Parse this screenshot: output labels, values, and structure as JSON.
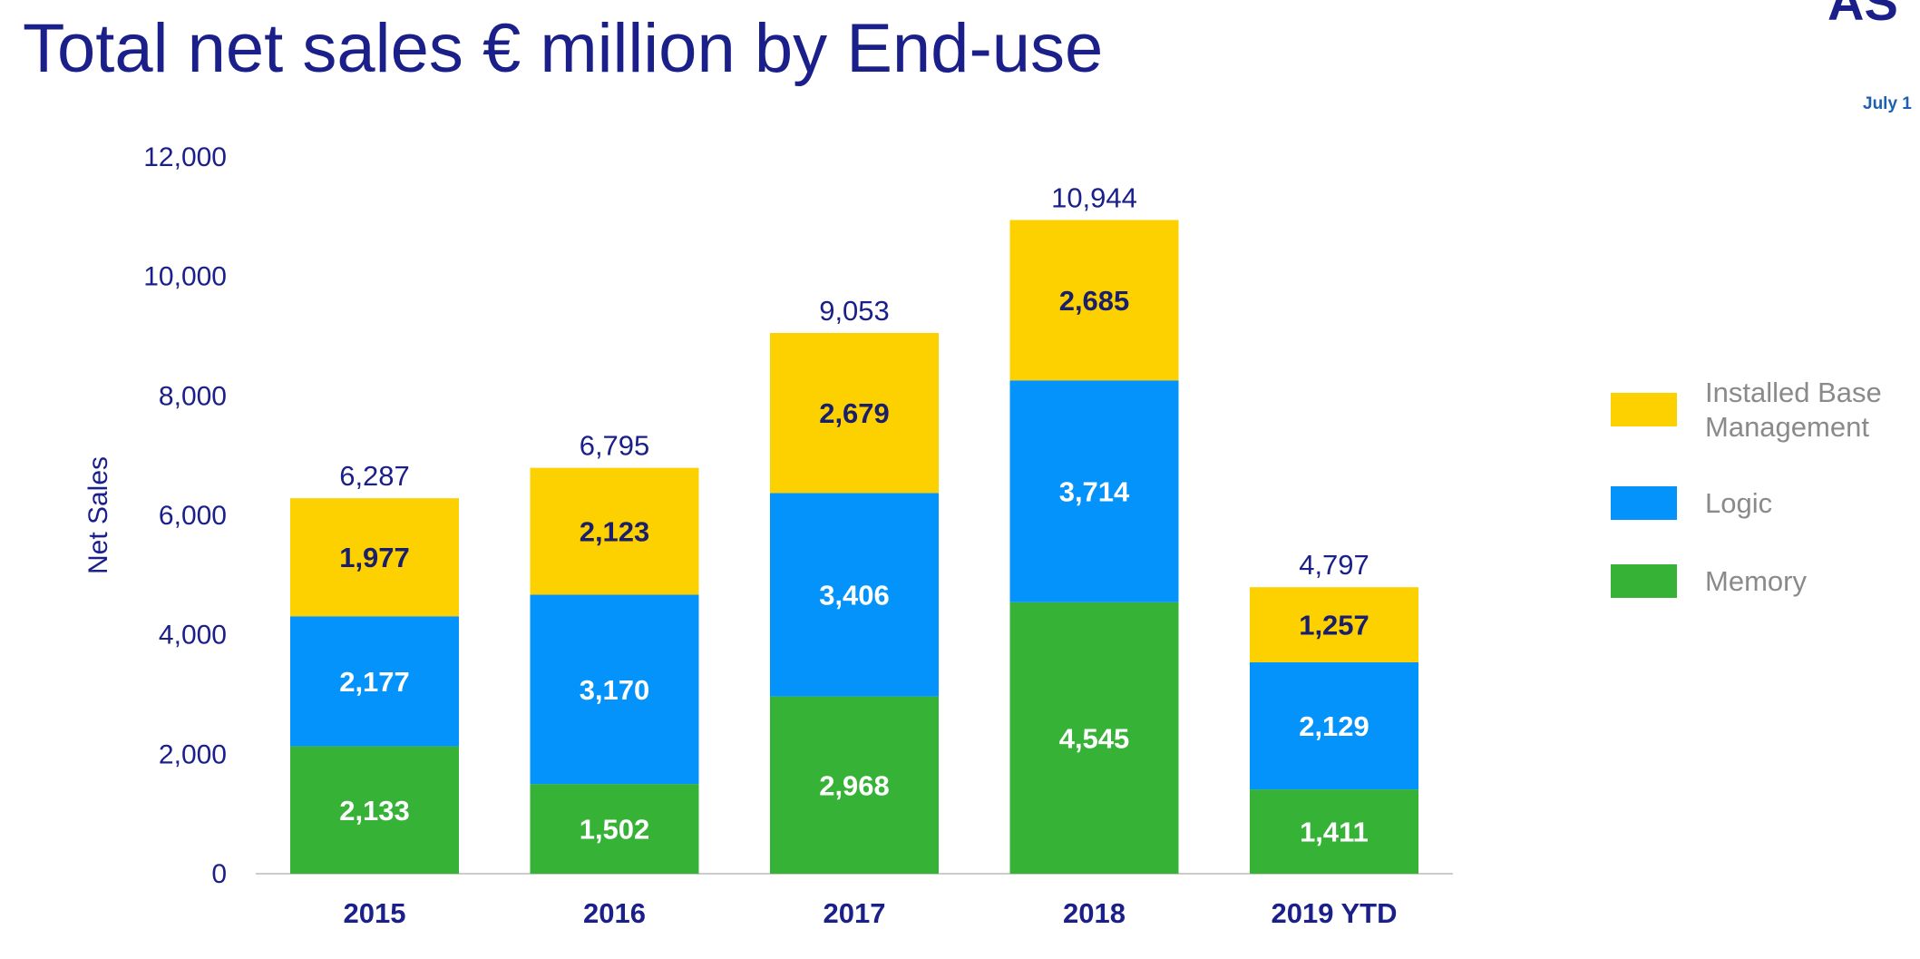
{
  "slide": {
    "title": "Total net sales € million by End-use",
    "logo_fragment": "AS",
    "date_fragment": "July 1"
  },
  "colors": {
    "title": "#1a1f8a",
    "axis_text": "#1a1f8a",
    "total_label": "#1a1f8a",
    "legend_text": "#8a8a8a",
    "axis_line": "#cccccc",
    "memory": "#36b337",
    "logic": "#0493fb",
    "installed_base": "#fdd000",
    "label_dark": "#1a1f6b",
    "label_light": "#ffffff"
  },
  "chart_data": {
    "type": "bar",
    "stacked": true,
    "title": "Total net sales € million by End-use",
    "ylabel": "Net Sales",
    "xlabel": "",
    "ylim": [
      0,
      12000
    ],
    "yticks": [
      0,
      2000,
      4000,
      6000,
      8000,
      10000,
      12000
    ],
    "ytick_labels": [
      "0",
      "2,000",
      "4,000",
      "6,000",
      "8,000",
      "10,000",
      "12,000"
    ],
    "categories": [
      "2015",
      "2016",
      "2017",
      "2018",
      "2019 YTD"
    ],
    "series": [
      {
        "name": "Memory",
        "color": "#36b337",
        "label_color": "#ffffff",
        "values": [
          2133,
          1502,
          2968,
          4545,
          1411
        ],
        "labels": [
          "2,133",
          "1,502",
          "2,968",
          "4,545",
          "1,411"
        ]
      },
      {
        "name": "Logic",
        "color": "#0493fb",
        "label_color": "#ffffff",
        "values": [
          2177,
          3170,
          3406,
          3714,
          2129
        ],
        "labels": [
          "2,177",
          "3,170",
          "3,406",
          "3,714",
          "2,129"
        ]
      },
      {
        "name": "Installed Base Management",
        "color": "#fdd000",
        "label_color": "#1a1f6b",
        "values": [
          1977,
          2123,
          2679,
          2685,
          1257
        ],
        "labels": [
          "1,977",
          "2,123",
          "2,679",
          "2,685",
          "1,257"
        ]
      }
    ],
    "totals": [
      6287,
      6795,
      9053,
      10944,
      4797
    ],
    "total_labels": [
      "6,287",
      "6,795",
      "9,053",
      "10,944",
      "4,797"
    ],
    "grid": false,
    "legend": {
      "position": "right",
      "order": [
        "Installed Base Management",
        "Logic",
        "Memory"
      ],
      "entries": [
        {
          "series": "Installed Base Management",
          "lines": [
            "Installed Base",
            "Management"
          ],
          "color": "#fdd000"
        },
        {
          "series": "Logic",
          "lines": [
            "Logic"
          ],
          "color": "#0493fb"
        },
        {
          "series": "Memory",
          "lines": [
            "Memory"
          ],
          "color": "#36b337"
        }
      ]
    }
  }
}
